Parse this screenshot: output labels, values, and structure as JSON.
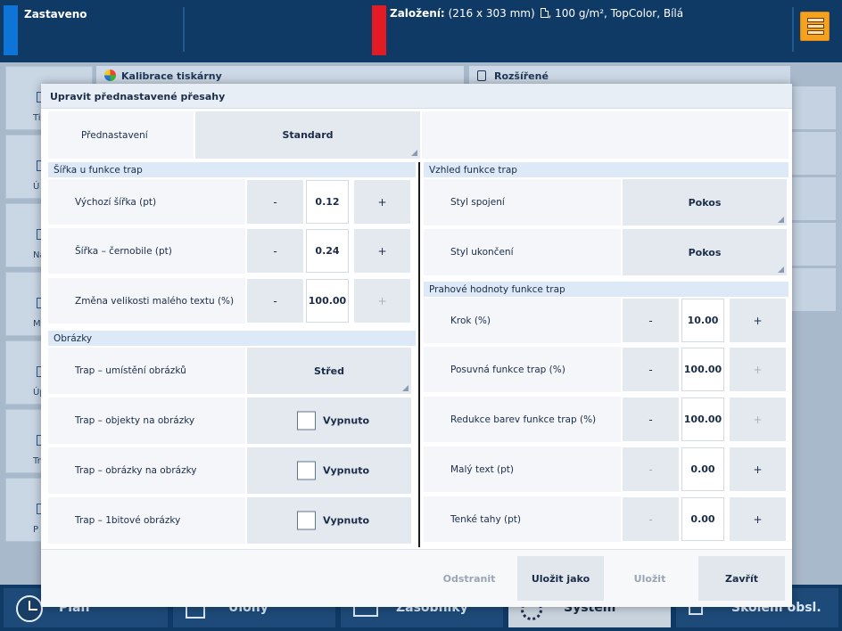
{
  "topbar": {
    "status": "Zastaveno",
    "loaded_label": "Založení:",
    "loaded_size": "(216 x 303 mm)",
    "loaded_media": ", 100 g/m², TopColor, Bílá"
  },
  "background": {
    "panel_left_title": "Kalibrace tiskárny",
    "panel_right_title": "Rozšířené",
    "left_tiles": [
      "Tis",
      "Ú",
      "Nas",
      "M",
      "Úpra",
      "Tra",
      "P"
    ]
  },
  "bottom_nav": {
    "items": [
      "Plán",
      "Úlohy",
      "Zásobníky",
      "Systém",
      "Školení obsl."
    ],
    "active": "Systém"
  },
  "dialog": {
    "title": "Upravit přednastavené přesahy",
    "preset": {
      "label": "Přednastavení",
      "value": "Standard"
    },
    "trap_width": {
      "heading": "Šířka u funkce trap",
      "rows": [
        {
          "label": "Výchozí šířka (pt)",
          "value": "0.12",
          "minus": "-",
          "plus": "+"
        },
        {
          "label": "Šířka – černobile (pt)",
          "value": "0.24",
          "minus": "-",
          "plus": "+"
        },
        {
          "label": "Změna velikosti malého textu (%)",
          "value": "100.00",
          "minus": "-",
          "plus": "+"
        }
      ]
    },
    "images": {
      "heading": "Obrázky",
      "placement": {
        "label": "Trap – umístění obrázků",
        "value": "Střed"
      },
      "checks": [
        {
          "label": "Trap – objekty na obrázky",
          "value": "Vypnuto"
        },
        {
          "label": "Trap – obrázky na obrázky",
          "value": "Vypnuto"
        },
        {
          "label": "Trap – 1bitové obrázky",
          "value": "Vypnuto"
        }
      ]
    },
    "appearance": {
      "heading": "Vzhled funkce trap",
      "join": {
        "label": "Styl spojení",
        "value": "Pokos"
      },
      "end": {
        "label": "Styl ukončení",
        "value": "Pokos"
      }
    },
    "thresholds": {
      "heading": "Prahové hodnoty funkce trap",
      "rows": [
        {
          "label": "Krok (%)",
          "value": "10.00",
          "minus": "-",
          "plus": "+"
        },
        {
          "label": "Posuvná funkce trap (%)",
          "value": "100.00",
          "minus": "-",
          "plus": "+"
        },
        {
          "label": "Redukce barev funkce trap (%)",
          "value": "100.00",
          "minus": "-",
          "plus": "+"
        },
        {
          "label": "Malý text (pt)",
          "value": "0.00",
          "minus": "-",
          "plus": "+"
        },
        {
          "label": "Tenké tahy (pt)",
          "value": "0.00",
          "minus": "-",
          "plus": "+"
        }
      ]
    },
    "footer": {
      "delete": "Odstranit",
      "save_as": "Uložit jako",
      "save": "Uložit",
      "close": "Zavřít"
    }
  }
}
